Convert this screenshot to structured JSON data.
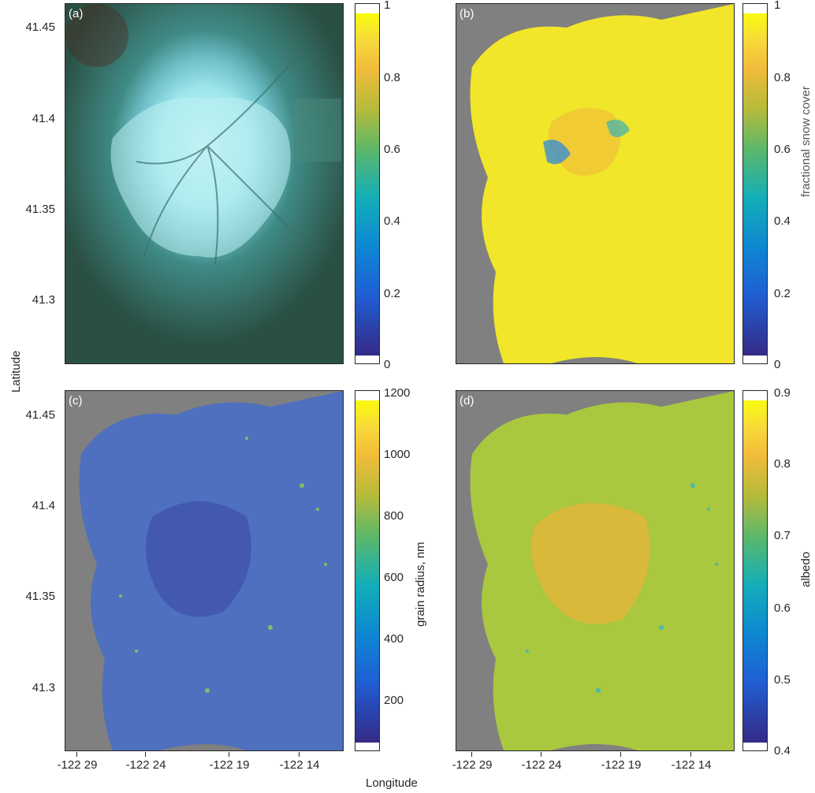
{
  "figure": {
    "x_axis_label": "Longitude",
    "y_axis_label": "Latitude",
    "x_tick_labels": [
      "-122 29",
      "-122 24",
      "-122 19",
      "-122 14"
    ],
    "y_tick_labels": [
      "41.45",
      "41.4",
      "41.35",
      "41.3"
    ]
  },
  "panels": [
    {
      "label": "(a)",
      "content": "RGB satellite composite image of snow-covered volcano"
    },
    {
      "label": "(b)",
      "content": "fractional snow cover map"
    },
    {
      "label": "(c)",
      "content": "grain radius map"
    },
    {
      "label": "(d)",
      "content": "albedo map"
    }
  ],
  "colorbars": [
    {
      "title": "",
      "ticks": [
        "1",
        "0.8",
        "0.6",
        "0.4",
        "0.2",
        "0"
      ]
    },
    {
      "title": "fractional snow cover",
      "ticks": [
        "1",
        "0.8",
        "0.6",
        "0.4",
        "0.2",
        "0"
      ]
    },
    {
      "title": "grain radius, nm",
      "ticks": [
        "1200",
        "1000",
        "800",
        "600",
        "400",
        "200"
      ]
    },
    {
      "title": "albedo",
      "ticks": [
        "0.9",
        "0.8",
        "0.7",
        "0.6",
        "0.5",
        "0.4"
      ]
    }
  ],
  "colors": {
    "no_data_gray": "#808080",
    "snow_yellow": "#f1e62a",
    "albedo_green": "#a9c73f",
    "grain_blue": "#4f6fbf",
    "rgb_snow": "#9fe6ec",
    "rgb_forest": "#2f5a4b"
  },
  "chart_data": [
    {
      "type": "heatmap",
      "title": "(a)",
      "colorbar_ticks": [
        0,
        0.2,
        0.4,
        0.6,
        0.8,
        1
      ],
      "ylim": [
        41.265,
        41.46
      ]
    },
    {
      "type": "heatmap",
      "title": "(b)",
      "colorbar_label": "fractional snow cover",
      "colorbar_ticks": [
        0,
        0.2,
        0.4,
        0.6,
        0.8,
        1
      ],
      "clim": [
        0,
        1
      ]
    },
    {
      "type": "heatmap",
      "title": "(c)",
      "colorbar_label": "grain radius, nm",
      "colorbar_ticks": [
        200,
        400,
        600,
        800,
        1000,
        1200
      ],
      "clim": [
        60,
        1170
      ]
    },
    {
      "type": "heatmap",
      "title": "(d)",
      "colorbar_label": "albedo",
      "colorbar_ticks": [
        0.4,
        0.5,
        0.6,
        0.7,
        0.8,
        0.9
      ],
      "clim": [
        0.4,
        0.89
      ]
    }
  ]
}
